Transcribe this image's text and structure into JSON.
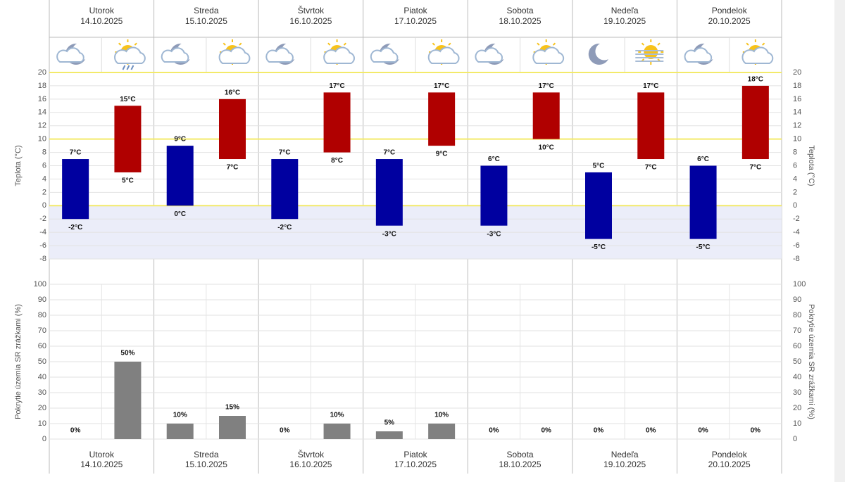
{
  "days": [
    {
      "name": "Utorok",
      "date": "14.10.2025"
    },
    {
      "name": "Streda",
      "date": "15.10.2025"
    },
    {
      "name": "Štvrtok",
      "date": "16.10.2025"
    },
    {
      "name": "Piatok",
      "date": "17.10.2025"
    },
    {
      "name": "Sobota",
      "date": "18.10.2025"
    },
    {
      "name": "Nedeľa",
      "date": "19.10.2025"
    },
    {
      "name": "Pondelok",
      "date": "20.10.2025"
    }
  ],
  "chart_data": [
    {
      "type": "range-bar",
      "y_label": "Teplota (°C)",
      "ylim": [
        -8,
        20
      ],
      "yticks": [
        -8,
        -6,
        -4,
        -2,
        0,
        2,
        4,
        6,
        8,
        10,
        12,
        14,
        16,
        18,
        20
      ],
      "grid": true,
      "highlight_lines": [
        0,
        10,
        20
      ],
      "highlight_color": "#f3ea6a",
      "negative_shade": "#ebedf9",
      "series": [
        {
          "color": "#0000a0",
          "low": [
            -2,
            0,
            -2,
            -3,
            -3,
            -5,
            -5
          ],
          "high": [
            7,
            9,
            7,
            7,
            6,
            5,
            6
          ],
          "low_labels": [
            "-2°C",
            "0°C",
            "-2°C",
            "-3°C",
            "-3°C",
            "-5°C",
            "-5°C"
          ],
          "high_labels": [
            "7°C",
            "9°C",
            "7°C",
            "7°C",
            "6°C",
            "5°C",
            "6°C"
          ]
        },
        {
          "color": "#b00000",
          "low": [
            5,
            7,
            8,
            9,
            10,
            7,
            7
          ],
          "high": [
            15,
            16,
            17,
            17,
            17,
            17,
            18
          ],
          "low_labels": [
            "5°C",
            "7°C",
            "8°C",
            "9°C",
            "10°C",
            "7°C",
            "7°C"
          ],
          "high_labels": [
            "15°C",
            "16°C",
            "17°C",
            "17°C",
            "17°C",
            "17°C",
            "18°C"
          ]
        }
      ]
    },
    {
      "type": "bar",
      "y_label": "Pokrytie územia SR zrážkami (%)",
      "ylim": [
        0,
        100
      ],
      "yticks": [
        0,
        10,
        20,
        30,
        40,
        50,
        60,
        70,
        80,
        90,
        100
      ],
      "grid": true,
      "series": [
        {
          "color": "#808080",
          "values": [
            0,
            10,
            0,
            5,
            0,
            0,
            0
          ],
          "value_labels": [
            "0%",
            "10%",
            "0%",
            "5%",
            "0%",
            "0%",
            "0%"
          ]
        },
        {
          "color": "#808080",
          "values": [
            50,
            15,
            10,
            10,
            0,
            0,
            0
          ],
          "value_labels": [
            "50%",
            "15%",
            "10%",
            "10%",
            "0%",
            "0%",
            "0%"
          ]
        }
      ]
    }
  ]
}
